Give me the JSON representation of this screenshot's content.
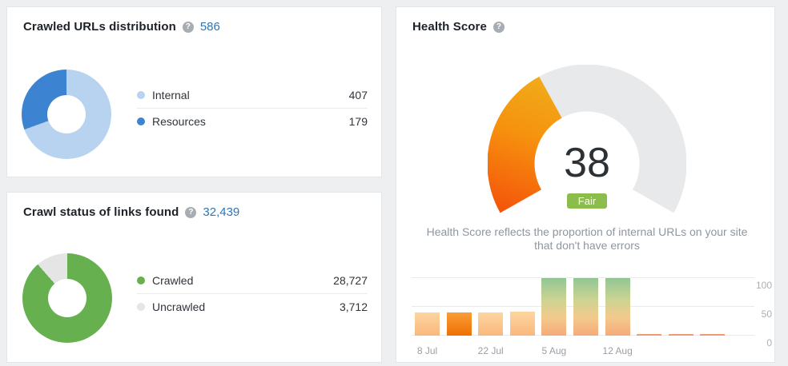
{
  "icons": {
    "help": "?"
  },
  "cards": {
    "crawled_urls": {
      "title": "Crawled URLs distribution",
      "count": "586",
      "legend": [
        {
          "label": "Internal",
          "value": "407"
        },
        {
          "label": "Resources",
          "value": "179"
        }
      ]
    },
    "crawl_status": {
      "title": "Crawl status of links found",
      "count": "32,439",
      "legend": [
        {
          "label": "Crawled",
          "value": "28,727"
        },
        {
          "label": "Uncrawled",
          "value": "3,712"
        }
      ]
    },
    "health_score": {
      "title": "Health Score",
      "score": "38",
      "rating": "Fair",
      "rating_color": "#8bbc4c",
      "description": "Health Score reflects the proportion of internal URLs on your site that don't have errors"
    }
  },
  "chart_data": [
    {
      "type": "pie",
      "title": "Crawled URLs distribution",
      "total": 586,
      "segments": [
        {
          "name": "Internal",
          "value": 407,
          "color": "#b7d3f0"
        },
        {
          "name": "Resources",
          "value": 179,
          "color": "#3c84d2"
        }
      ]
    },
    {
      "type": "pie",
      "title": "Crawl status of links found",
      "total": 32439,
      "segments": [
        {
          "name": "Crawled",
          "value": 28727,
          "color": "#67b04f"
        },
        {
          "name": "Uncrawled",
          "value": 3712,
          "color": "#e5e5e5"
        }
      ]
    },
    {
      "type": "gauge",
      "title": "Health Score",
      "value": 38,
      "min": 0,
      "max": 100,
      "label": "Fair",
      "track_color": "#e8e9eb",
      "gradient": [
        "#f4540a",
        "#f6920e",
        "#eeb41f"
      ]
    },
    {
      "type": "bar",
      "title": "Health Score history",
      "x_ticks": [
        "8 Jul",
        "22 Jul",
        "5 Aug",
        "12 Aug"
      ],
      "x_tick_bar_index": [
        0,
        2,
        4,
        6
      ],
      "y_ticks": [
        0,
        50,
        100
      ],
      "ylim": [
        0,
        100
      ],
      "values": [
        40,
        40,
        40,
        41,
        100,
        100,
        100,
        2,
        2,
        2
      ],
      "bar_styles": [
        "peach",
        "orange",
        "peach",
        "peach",
        "grad",
        "grad",
        "grad",
        "flat",
        "flat",
        "flat"
      ]
    }
  ]
}
